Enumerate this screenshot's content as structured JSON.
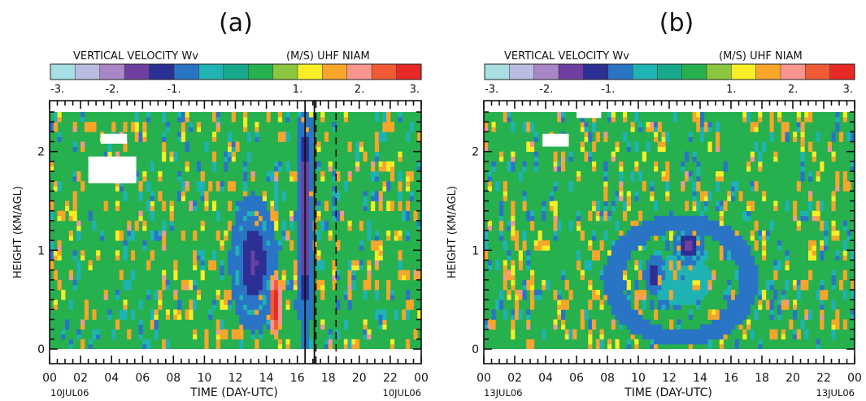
{
  "chart_data": [
    {
      "type": "heatmap",
      "panel_label": "(a)",
      "colorbar_title_left": "VERTICAL VELOCITY Wv",
      "colorbar_title_right": "(M/S) UHF NIAM",
      "colorbar_tick_labels": [
        "-3.",
        "-2.",
        "-1.",
        "1.",
        "2.",
        "3."
      ],
      "xlabel": "TIME (DAY-UTC)",
      "ylabel": "HEIGHT (KM/AGL)",
      "x_tick_labels": [
        "00",
        "02",
        "04",
        "06",
        "08",
        "10",
        "12",
        "14",
        "16",
        "18",
        "20",
        "22",
        "00"
      ],
      "y_tick_labels": [
        "0",
        "1",
        "2"
      ],
      "xlim": [
        0,
        24
      ],
      "ylim": [
        0,
        2.4
      ],
      "date_left": "10JUL06",
      "date_right": "10JUL06",
      "solid_vertical_lines_hours": [
        16.5,
        17.1
      ],
      "dashed_vertical_lines_hours": [
        17.2,
        18.5
      ],
      "missing_data_regions": [
        {
          "x": [
            3.3,
            5.0
          ],
          "y": [
            2.08,
            2.18
          ]
        },
        {
          "x": [
            2.5,
            5.6
          ],
          "y": [
            1.68,
            1.95
          ]
        }
      ],
      "features": [
        {
          "value_mps": -2.5,
          "x": [
            16.1,
            16.9
          ],
          "y": [
            0.25,
            2.4
          ]
        },
        {
          "value_mps": -2.0,
          "x": [
            12.0,
            14.3
          ],
          "y": [
            0.35,
            1.4
          ]
        },
        {
          "value_mps": 2.5,
          "x": [
            14.2,
            15.0
          ],
          "y": [
            0.1,
            0.8
          ]
        },
        {
          "value_mps": -1.5,
          "x": [
            18.2,
            18.5
          ],
          "y": [
            1.4,
            1.6
          ]
        }
      ]
    },
    {
      "type": "heatmap",
      "panel_label": "(b)",
      "colorbar_title_left": "VERTICAL VELOCITY Wv",
      "colorbar_title_right": "(M/S) UHF NIAM",
      "colorbar_tick_labels": [
        "-3.",
        "-2.",
        "-1.",
        "1.",
        "2.",
        "3."
      ],
      "xlabel": "TIME (DAY-UTC)",
      "ylabel": "HEIGHT (KM/AGL)",
      "x_tick_labels": [
        "00",
        "02",
        "04",
        "06",
        "08",
        "10",
        "12",
        "14",
        "16",
        "18",
        "20",
        "22",
        "00"
      ],
      "y_tick_labels": [
        "0",
        "1",
        "2"
      ],
      "xlim": [
        0,
        24
      ],
      "ylim": [
        0,
        2.4
      ],
      "date_left": "13JUL06",
      "date_right": "13JUL06",
      "missing_data_regions": [
        {
          "x": [
            3.8,
            5.5
          ],
          "y": [
            2.05,
            2.18
          ]
        },
        {
          "x": [
            6.0,
            7.6
          ],
          "y": [
            2.34,
            2.4
          ]
        }
      ],
      "features": [
        {
          "value_mps": -2.0,
          "x": [
            10.5,
            11.5
          ],
          "y": [
            0.6,
            0.9
          ]
        },
        {
          "value_mps": -2.2,
          "x": [
            12.5,
            14.0
          ],
          "y": [
            0.9,
            1.2
          ]
        },
        {
          "value_mps": -1.0,
          "x": [
            9.0,
            16.5
          ],
          "y": [
            0.2,
            1.2
          ]
        }
      ]
    }
  ],
  "colors": {
    "background": "#ffffff",
    "field_base": "#26b04e",
    "colorbar": [
      "#a8dfe2",
      "#b9bde2",
      "#a986c6",
      "#6f3fa0",
      "#2c2f93",
      "#2a74c6",
      "#1fb3b3",
      "#17a98a",
      "#26b04e",
      "#8cc63f",
      "#f8ee27",
      "#f7a52b",
      "#f7958f",
      "#f05a35",
      "#e62a25"
    ]
  }
}
